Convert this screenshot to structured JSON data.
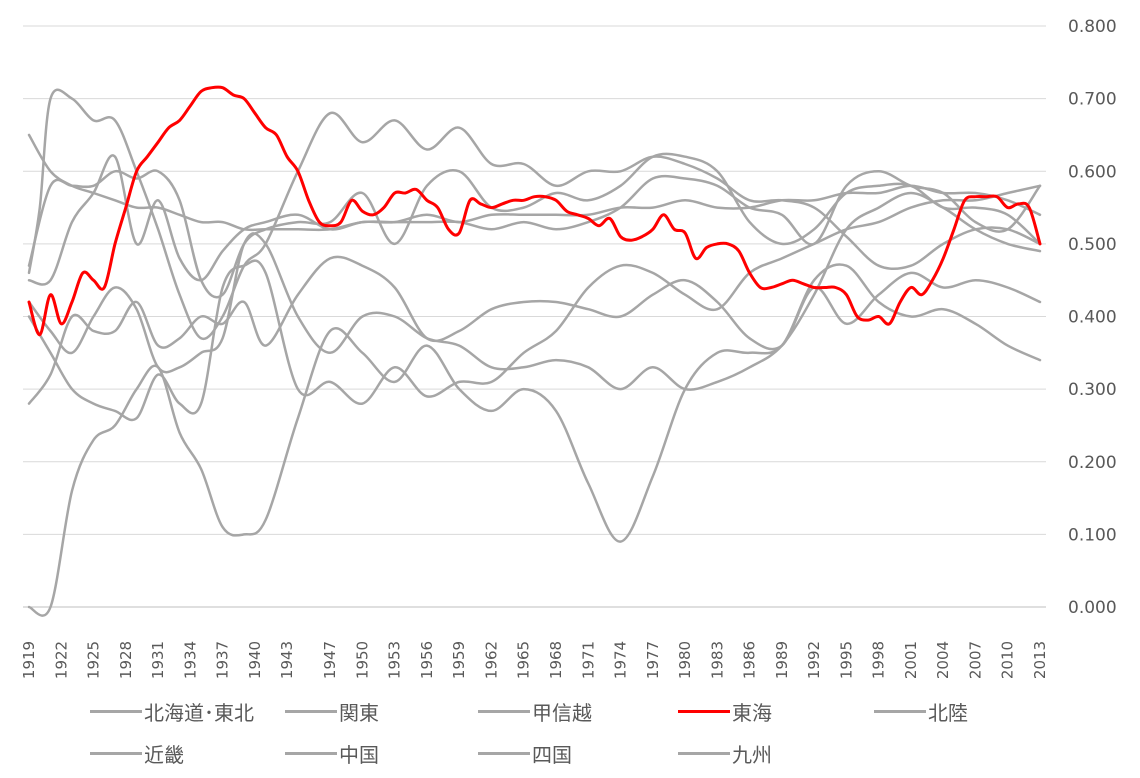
{
  "chart_data": {
    "type": "line",
    "title": "",
    "xlabel": "",
    "ylabel": "",
    "ylim": [
      0,
      0.8
    ],
    "y_ticks": [
      "0.000",
      "0.100",
      "0.200",
      "0.300",
      "0.400",
      "0.500",
      "0.600",
      "0.700",
      "0.800"
    ],
    "y_axis_position": "right",
    "grid": true,
    "legend_position": "bottom",
    "x_tick_labels": [
      "1919",
      "1922",
      "1925",
      "1928",
      "1931",
      "1934",
      "1937",
      "1940",
      "1943",
      "1947",
      "1950",
      "1953",
      "1956",
      "1959",
      "1962",
      "1965",
      "1968",
      "1971",
      "1974",
      "1977",
      "1980",
      "1983",
      "1986",
      "1989",
      "1992",
      "1995",
      "1998",
      "2001",
      "2004",
      "2007",
      "2010",
      "2013"
    ],
    "x_range": [
      1919,
      2013
    ],
    "colors": {
      "highlight": "#ff0000",
      "other": "#a6a6a6",
      "grid": "#d9d9d9"
    },
    "series": [
      {
        "name": "北海道･東北",
        "color": "#a6a6a6",
        "x": [
          1919,
          1921,
          1923,
          1925,
          1927,
          1929,
          1931,
          1933,
          1935,
          1937,
          1939,
          1941,
          1944,
          1947,
          1950,
          1953,
          1956,
          1959,
          1962,
          1965,
          1968,
          1971,
          1974,
          1977,
          1980,
          1983,
          1986,
          1989,
          1992,
          1995,
          1998,
          2001,
          2004,
          2007,
          2010,
          2013
        ],
        "values": [
          0.65,
          0.6,
          0.58,
          0.57,
          0.56,
          0.55,
          0.55,
          0.54,
          0.53,
          0.53,
          0.52,
          0.52,
          0.52,
          0.52,
          0.53,
          0.53,
          0.54,
          0.53,
          0.54,
          0.54,
          0.54,
          0.54,
          0.55,
          0.55,
          0.56,
          0.55,
          0.55,
          0.56,
          0.56,
          0.57,
          0.57,
          0.58,
          0.57,
          0.57,
          0.56,
          0.54
        ]
      },
      {
        "name": "関東",
        "color": "#a6a6a6",
        "x": [
          1919,
          1920,
          1921,
          1923,
          1925,
          1927,
          1929,
          1931,
          1933,
          1935,
          1937,
          1939,
          1941,
          1944,
          1947,
          1950,
          1953,
          1956,
          1959,
          1962,
          1965,
          1968,
          1971,
          1974,
          1977,
          1980,
          1983,
          1986,
          1989,
          1992,
          1995,
          1998,
          2001,
          2004,
          2007,
          2010,
          2013
        ],
        "values": [
          0.46,
          0.55,
          0.7,
          0.7,
          0.67,
          0.67,
          0.6,
          0.52,
          0.43,
          0.37,
          0.4,
          0.47,
          0.5,
          0.6,
          0.68,
          0.64,
          0.67,
          0.63,
          0.66,
          0.61,
          0.61,
          0.58,
          0.6,
          0.6,
          0.62,
          0.61,
          0.59,
          0.56,
          0.56,
          0.55,
          0.51,
          0.47,
          0.47,
          0.5,
          0.52,
          0.52,
          0.5
        ]
      },
      {
        "name": "甲信越",
        "color": "#a6a6a6",
        "x": [
          1919,
          1921,
          1923,
          1925,
          1927,
          1929,
          1931,
          1933,
          1935,
          1937,
          1939,
          1941,
          1944,
          1947,
          1950,
          1953,
          1956,
          1959,
          1962,
          1965,
          1968,
          1971,
          1974,
          1977,
          1980,
          1983,
          1986,
          1989,
          1992,
          1995,
          1998,
          2001,
          2004,
          2007,
          2010,
          2013
        ],
        "values": [
          0.47,
          0.58,
          0.58,
          0.58,
          0.6,
          0.59,
          0.6,
          0.56,
          0.45,
          0.43,
          0.5,
          0.52,
          0.53,
          0.53,
          0.57,
          0.5,
          0.58,
          0.6,
          0.55,
          0.55,
          0.57,
          0.56,
          0.58,
          0.62,
          0.62,
          0.6,
          0.53,
          0.5,
          0.52,
          0.57,
          0.58,
          0.58,
          0.55,
          0.55,
          0.54,
          0.5
        ]
      },
      {
        "name": "東海",
        "color": "#ff0000",
        "x": [
          1919,
          1920,
          1921,
          1922,
          1923,
          1924,
          1925,
          1926,
          1927,
          1928,
          1929,
          1930,
          1931,
          1932,
          1933,
          1934,
          1935,
          1936,
          1937,
          1938,
          1939,
          1940,
          1941,
          1942,
          1943,
          1944,
          1945,
          1946,
          1947,
          1948,
          1949,
          1950,
          1951,
          1952,
          1953,
          1954,
          1955,
          1956,
          1957,
          1958,
          1959,
          1960,
          1961,
          1962,
          1963,
          1964,
          1965,
          1966,
          1967,
          1968,
          1969,
          1970,
          1971,
          1972,
          1973,
          1974,
          1975,
          1976,
          1977,
          1978,
          1979,
          1980,
          1981,
          1982,
          1983,
          1984,
          1985,
          1986,
          1987,
          1988,
          1989,
          1990,
          1991,
          1992,
          1993,
          1994,
          1995,
          1996,
          1997,
          1998,
          1999,
          2000,
          2001,
          2002,
          2003,
          2004,
          2005,
          2006,
          2007,
          2008,
          2009,
          2010,
          2011,
          2012,
          2013
        ],
        "values": [
          0.42,
          0.375,
          0.43,
          0.39,
          0.42,
          0.46,
          0.45,
          0.44,
          0.5,
          0.55,
          0.6,
          0.62,
          0.64,
          0.66,
          0.67,
          0.69,
          0.71,
          0.715,
          0.715,
          0.705,
          0.7,
          0.68,
          0.66,
          0.65,
          0.62,
          0.6,
          0.56,
          0.53,
          0.525,
          0.53,
          0.56,
          0.545,
          0.54,
          0.55,
          0.57,
          0.57,
          0.575,
          0.56,
          0.55,
          0.52,
          0.515,
          0.56,
          0.555,
          0.55,
          0.555,
          0.56,
          0.56,
          0.565,
          0.565,
          0.56,
          0.545,
          0.54,
          0.535,
          0.525,
          0.535,
          0.51,
          0.505,
          0.51,
          0.52,
          0.54,
          0.52,
          0.515,
          0.48,
          0.495,
          0.5,
          0.5,
          0.49,
          0.46,
          0.44,
          0.44,
          0.445,
          0.45,
          0.445,
          0.44,
          0.44,
          0.44,
          0.43,
          0.4,
          0.395,
          0.4,
          0.39,
          0.42,
          0.44,
          0.43,
          0.45,
          0.48,
          0.52,
          0.56,
          0.565,
          0.565,
          0.565,
          0.55,
          0.555,
          0.55,
          0.5
        ]
      },
      {
        "name": "北陸",
        "color": "#a6a6a6",
        "x": [
          1919,
          1921,
          1923,
          1925,
          1927,
          1929,
          1931,
          1933,
          1935,
          1937,
          1939,
          1941,
          1944,
          1947,
          1950,
          1953,
          1956,
          1959,
          1962,
          1965,
          1968,
          1971,
          1974,
          1977,
          1980,
          1983,
          1986,
          1989,
          1992,
          1995,
          1998,
          2001,
          2004,
          2007,
          2010,
          2013
        ],
        "values": [
          0.45,
          0.45,
          0.53,
          0.57,
          0.62,
          0.5,
          0.56,
          0.48,
          0.45,
          0.49,
          0.52,
          0.53,
          0.54,
          0.52,
          0.53,
          0.53,
          0.53,
          0.53,
          0.52,
          0.53,
          0.52,
          0.53,
          0.55,
          0.59,
          0.59,
          0.58,
          0.55,
          0.54,
          0.5,
          0.58,
          0.6,
          0.58,
          0.57,
          0.53,
          0.52,
          0.58
        ]
      },
      {
        "name": "近畿",
        "color": "#a6a6a6",
        "x": [
          1919,
          1921,
          1923,
          1925,
          1927,
          1929,
          1931,
          1933,
          1935,
          1937,
          1939,
          1941,
          1944,
          1947,
          1950,
          1953,
          1956,
          1959,
          1962,
          1965,
          1968,
          1971,
          1974,
          1977,
          1980,
          1983,
          1986,
          1989,
          1992,
          1995,
          1998,
          2001,
          2004,
          2007,
          2010,
          2013
        ],
        "values": [
          0.0,
          0.0,
          0.16,
          0.23,
          0.25,
          0.3,
          0.33,
          0.24,
          0.19,
          0.11,
          0.1,
          0.12,
          0.26,
          0.38,
          0.35,
          0.31,
          0.36,
          0.3,
          0.27,
          0.3,
          0.27,
          0.17,
          0.09,
          0.18,
          0.3,
          0.35,
          0.35,
          0.36,
          0.45,
          0.47,
          0.42,
          0.4,
          0.41,
          0.39,
          0.36,
          0.34
        ]
      },
      {
        "name": "中国",
        "color": "#a6a6a6",
        "x": [
          1919,
          1921,
          1923,
          1925,
          1927,
          1929,
          1931,
          1933,
          1935,
          1937,
          1939,
          1941,
          1944,
          1947,
          1950,
          1953,
          1956,
          1959,
          1962,
          1965,
          1968,
          1971,
          1974,
          1977,
          1980,
          1983,
          1986,
          1989,
          1992,
          1995,
          1998,
          2001,
          2004,
          2007,
          2010,
          2013
        ],
        "values": [
          0.28,
          0.32,
          0.4,
          0.38,
          0.38,
          0.42,
          0.36,
          0.37,
          0.4,
          0.39,
          0.42,
          0.36,
          0.43,
          0.48,
          0.47,
          0.44,
          0.37,
          0.38,
          0.41,
          0.42,
          0.42,
          0.41,
          0.4,
          0.43,
          0.45,
          0.42,
          0.37,
          0.36,
          0.44,
          0.39,
          0.43,
          0.46,
          0.44,
          0.45,
          0.44,
          0.42
        ]
      },
      {
        "name": "四国",
        "color": "#a6a6a6",
        "x": [
          1919,
          1921,
          1923,
          1925,
          1927,
          1929,
          1931,
          1933,
          1935,
          1937,
          1939,
          1941,
          1944,
          1947,
          1950,
          1953,
          1956,
          1959,
          1962,
          1965,
          1968,
          1971,
          1974,
          1977,
          1980,
          1983,
          1986,
          1989,
          1992,
          1995,
          1998,
          2001,
          2004,
          2007,
          2010,
          2013
        ],
        "values": [
          0.4,
          0.35,
          0.3,
          0.28,
          0.27,
          0.26,
          0.32,
          0.28,
          0.28,
          0.44,
          0.47,
          0.46,
          0.3,
          0.31,
          0.28,
          0.33,
          0.29,
          0.31,
          0.31,
          0.35,
          0.38,
          0.44,
          0.47,
          0.46,
          0.43,
          0.41,
          0.46,
          0.48,
          0.5,
          0.52,
          0.53,
          0.55,
          0.56,
          0.56,
          0.57,
          0.58
        ]
      },
      {
        "name": "九州",
        "color": "#a6a6a6",
        "x": [
          1919,
          1921,
          1923,
          1925,
          1927,
          1929,
          1931,
          1933,
          1935,
          1937,
          1939,
          1941,
          1944,
          1947,
          1950,
          1953,
          1956,
          1959,
          1962,
          1965,
          1968,
          1971,
          1974,
          1977,
          1980,
          1983,
          1986,
          1989,
          1992,
          1995,
          1998,
          2001,
          2004,
          2007,
          2010,
          2013
        ],
        "values": [
          0.42,
          0.38,
          0.35,
          0.4,
          0.44,
          0.41,
          0.33,
          0.33,
          0.35,
          0.37,
          0.5,
          0.5,
          0.4,
          0.35,
          0.4,
          0.4,
          0.37,
          0.36,
          0.33,
          0.33,
          0.34,
          0.33,
          0.3,
          0.33,
          0.3,
          0.31,
          0.33,
          0.36,
          0.43,
          0.52,
          0.55,
          0.57,
          0.55,
          0.52,
          0.5,
          0.49
        ]
      }
    ]
  }
}
